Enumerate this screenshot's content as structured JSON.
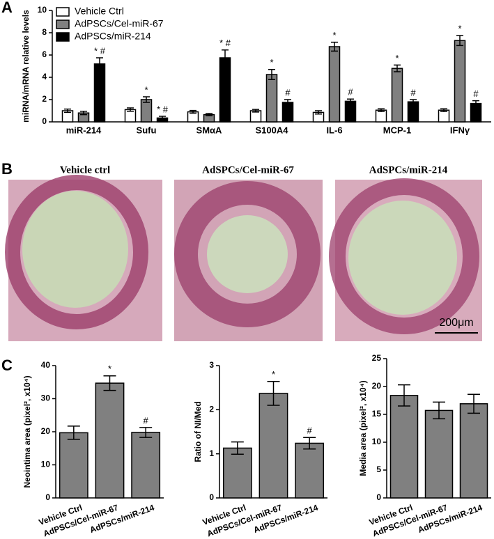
{
  "panel_labels": [
    "A",
    "B",
    "C"
  ],
  "micrographs": {
    "titles": [
      "Vehicle ctrl",
      "AdSPCs/Cel-miR-67",
      "AdSPCs/miR-214"
    ],
    "scale_bar": "200μm"
  },
  "chart_data": [
    {
      "type": "grouped-bar",
      "ylabel": "miRNA/mRNA relative levels",
      "categories": [
        "miR-214",
        "Sufu",
        "SMαA",
        "S100A4",
        "IL-6",
        "MCP-1",
        "IFNγ"
      ],
      "series": [
        {
          "name": "Vehicle Ctrl",
          "color": "#ffffff",
          "values": [
            1.0,
            1.1,
            0.9,
            1.0,
            0.85,
            1.05,
            1.05
          ],
          "errors": [
            0.15,
            0.15,
            0.12,
            0.12,
            0.15,
            0.12,
            0.12
          ],
          "annotations": [
            null,
            null,
            null,
            null,
            null,
            null,
            null
          ]
        },
        {
          "name": "AdPSCs/Cel-miR-67",
          "color": "#808080",
          "values": [
            0.8,
            2.0,
            0.65,
            4.25,
            6.75,
            4.8,
            7.3
          ],
          "errors": [
            0.15,
            0.25,
            0.1,
            0.45,
            0.4,
            0.3,
            0.45
          ],
          "annotations": [
            null,
            "*",
            null,
            "*",
            "*",
            "*",
            "*"
          ]
        },
        {
          "name": "AdPSCs/miR-214",
          "color": "#000000",
          "values": [
            5.2,
            0.35,
            5.75,
            1.75,
            1.85,
            1.8,
            1.65
          ],
          "errors": [
            0.55,
            0.15,
            0.7,
            0.25,
            0.2,
            0.2,
            0.25
          ],
          "annotations": [
            "* #",
            "* #",
            "* #",
            "#",
            "#",
            "#",
            "#"
          ]
        }
      ],
      "ylim": [
        0,
        10
      ],
      "yticks": [
        0,
        2,
        4,
        6,
        8,
        10
      ],
      "legend": "upper left"
    },
    {
      "type": "bar",
      "ylabel": "Neointima area (pixel², x10⁴)",
      "categories": [
        "Vehicle Ctrl",
        "AdPSCs/Cel-miR-67",
        "AdPSCs/miR-214"
      ],
      "values": [
        19.7,
        34.7,
        19.8
      ],
      "errors": [
        2.0,
        2.2,
        1.5
      ],
      "annotations": [
        null,
        "*",
        "#"
      ],
      "color": "#808080",
      "ylim": [
        0,
        40
      ],
      "yticks": [
        0,
        10,
        20,
        30,
        40
      ]
    },
    {
      "type": "bar",
      "ylabel": "Ratio of NI/Med",
      "categories": [
        "Vehicle Ctrl",
        "AdPSCs/Cel-miR-67",
        "AdPSCs/miR-214"
      ],
      "values": [
        1.13,
        2.37,
        1.24
      ],
      "errors": [
        0.14,
        0.27,
        0.13
      ],
      "annotations": [
        null,
        "*",
        "#"
      ],
      "color": "#808080",
      "ylim": [
        0,
        3
      ],
      "yticks": [
        0,
        1,
        2,
        3
      ]
    },
    {
      "type": "bar",
      "ylabel": "Media area (pixel², x10⁴)",
      "categories": [
        "Vehicle Ctrl",
        "AdPSCs/Cel-miR-67",
        "AdPSCs/miR-214"
      ],
      "values": [
        18.4,
        15.7,
        16.9
      ],
      "errors": [
        1.9,
        1.5,
        1.7
      ],
      "annotations": [
        null,
        null,
        null
      ],
      "color": "#808080",
      "ylim": [
        0,
        25
      ],
      "yticks": [
        0,
        5,
        10,
        15,
        20,
        25
      ]
    }
  ]
}
